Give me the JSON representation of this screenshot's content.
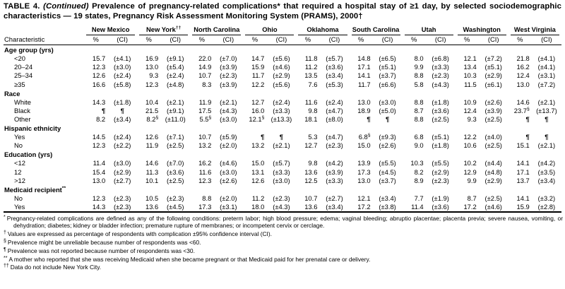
{
  "title": {
    "part1": "TABLE 4. ",
    "continued": "(Continued)",
    "rest": " Prevalence of pregnancy-related complications* that required a hospital stay of ≥1 day, by selected sociodemographic characteristics — 19 states, Pregnancy Risk Assessment Monitoring System (PRAMS), 2000†"
  },
  "table": {
    "stub_header": "Characteristic",
    "subheaders": {
      "pct": "%",
      "ci": "(CI)"
    },
    "states": [
      "New Mexico",
      "New York††",
      "North Carolina",
      "Ohio",
      "Oklahoma",
      "South Carolina",
      "Utah",
      "Washington",
      "West Virginia"
    ],
    "sections": [
      {
        "label": "Age group (yrs)",
        "rows": [
          {
            "label": "<20",
            "cells": [
              [
                "15.7",
                "(±4.1)"
              ],
              [
                "16.9",
                "(±9.1)"
              ],
              [
                "22.0",
                "(±7.0)"
              ],
              [
                "14.7",
                "(±5.6)"
              ],
              [
                "11.8",
                "(±5.7)"
              ],
              [
                "14.8",
                "(±6.5)"
              ],
              [
                "8.0",
                "(±6.8)"
              ],
              [
                "12.1",
                "(±7.2)"
              ],
              [
                "21.8",
                "(±4.1)"
              ]
            ]
          },
          {
            "label": "20–24",
            "cells": [
              [
                "12.3",
                "(±3.0)"
              ],
              [
                "13.0",
                "(±5.4)"
              ],
              [
                "14.9",
                "(±3.9)"
              ],
              [
                "15.9",
                "(±4.6)"
              ],
              [
                "11.2",
                "(±3.6)"
              ],
              [
                "17.1",
                "(±5.1)"
              ],
              [
                "9.9",
                "(±3.3)"
              ],
              [
                "13.4",
                "(±5.1)"
              ],
              [
                "16.2",
                "(±4.1)"
              ]
            ]
          },
          {
            "label": "25–34",
            "cells": [
              [
                "12.6",
                "(±2.4)"
              ],
              [
                "9.3",
                "(±2.4)"
              ],
              [
                "10.7",
                "(±2.3)"
              ],
              [
                "11.7",
                "(±2.9)"
              ],
              [
                "13.5",
                "(±3.4)"
              ],
              [
                "14.1",
                "(±3.7)"
              ],
              [
                "8.8",
                "(±2.3)"
              ],
              [
                "10.3",
                "(±2.9)"
              ],
              [
                "12.4",
                "(±3.1)"
              ]
            ]
          },
          {
            "label": "≥35",
            "cells": [
              [
                "16.6",
                "(±5.8)"
              ],
              [
                "12.3",
                "(±4.8)"
              ],
              [
                "8.3",
                "(±3.9)"
              ],
              [
                "12.2",
                "(±5.6)"
              ],
              [
                "7.6",
                "(±5.3)"
              ],
              [
                "11.7",
                "(±6.6)"
              ],
              [
                "5.8",
                "(±4.3)"
              ],
              [
                "11.5",
                "(±6.1)"
              ],
              [
                "13.0",
                "(±7.2)"
              ]
            ]
          }
        ]
      },
      {
        "label": "Race",
        "rows": [
          {
            "label": "White",
            "cells": [
              [
                "14.3",
                "(±1.8)"
              ],
              [
                "10.4",
                "(±2.1)"
              ],
              [
                "11.9",
                "(±2.1)"
              ],
              [
                "12.7",
                "(±2.4)"
              ],
              [
                "11.6",
                "(±2.4)"
              ],
              [
                "13.0",
                "(±3.0)"
              ],
              [
                "8.8",
                "(±1.8)"
              ],
              [
                "10.9",
                "(±2.6)"
              ],
              [
                "14.6",
                "(±2.1)"
              ]
            ]
          },
          {
            "label": "Black",
            "cells": [
              [
                "¶",
                "¶"
              ],
              [
                "21.5",
                "(±9.1)"
              ],
              [
                "17.5",
                "(±4.3)"
              ],
              [
                "16.0",
                "(±3.3)"
              ],
              [
                "9.8",
                "(±4.7)"
              ],
              [
                "18.9",
                "(±5.0)"
              ],
              [
                "8.7",
                "(±3.6)"
              ],
              [
                "12.4",
                "(±3.9)"
              ],
              [
                "23.7§",
                "(±13.7)"
              ]
            ]
          },
          {
            "label": "Other",
            "cells": [
              [
                "8.2",
                "(±3.4)"
              ],
              [
                "8.2§",
                "(±11.0)"
              ],
              [
                "5.5§",
                "(±3.0)"
              ],
              [
                "12.1§",
                "(±13.3)"
              ],
              [
                "18.1",
                "(±8.0)"
              ],
              [
                "¶",
                "¶"
              ],
              [
                "8.8",
                "(±2.5)"
              ],
              [
                "9.3",
                "(±2.5)"
              ],
              [
                "¶",
                "¶"
              ]
            ]
          }
        ]
      },
      {
        "label": "Hispanic ethnicity",
        "rows": [
          {
            "label": "Yes",
            "cells": [
              [
                "14.5",
                "(±2.4)"
              ],
              [
                "12.6",
                "(±7.1)"
              ],
              [
                "10.7",
                "(±5.9)"
              ],
              [
                "¶",
                "¶"
              ],
              [
                "5.3",
                "(±4.7)"
              ],
              [
                "6.8§",
                "(±9.3)"
              ],
              [
                "6.8",
                "(±5.1)"
              ],
              [
                "12.2",
                "(±4.0)"
              ],
              [
                "¶",
                "¶"
              ]
            ]
          },
          {
            "label": "No",
            "cells": [
              [
                "12.3",
                "(±2.2)"
              ],
              [
                "11.9",
                "(±2.5)"
              ],
              [
                "13.2",
                "(±2.0)"
              ],
              [
                "13.2",
                "(±2.1)"
              ],
              [
                "12.7",
                "(±2.3)"
              ],
              [
                "15.0",
                "(±2.6)"
              ],
              [
                "9.0",
                "(±1.8)"
              ],
              [
                "10.6",
                "(±2.5)"
              ],
              [
                "15.1",
                "(±2.1)"
              ]
            ]
          }
        ]
      },
      {
        "label": "Education (yrs)",
        "rows": [
          {
            "label": "<12",
            "cells": [
              [
                "11.4",
                "(±3.0)"
              ],
              [
                "14.6",
                "(±7.0)"
              ],
              [
                "16.2",
                "(±4.6)"
              ],
              [
                "15.0",
                "(±5.7)"
              ],
              [
                "9.8",
                "(±4.2)"
              ],
              [
                "13.9",
                "(±5.5)"
              ],
              [
                "10.3",
                "(±5.5)"
              ],
              [
                "10.2",
                "(±4.4)"
              ],
              [
                "14.1",
                "(±4.2)"
              ]
            ]
          },
          {
            "label": "12",
            "cells": [
              [
                "15.4",
                "(±2.9)"
              ],
              [
                "11.3",
                "(±3.6)"
              ],
              [
                "11.6",
                "(±3.0)"
              ],
              [
                "13.1",
                "(±3.3)"
              ],
              [
                "13.6",
                "(±3.9)"
              ],
              [
                "17.3",
                "(±4.5)"
              ],
              [
                "8.2",
                "(±2.9)"
              ],
              [
                "12.9",
                "(±4.8)"
              ],
              [
                "17.1",
                "(±3.5)"
              ]
            ]
          },
          {
            "label": ">12",
            "cells": [
              [
                "13.0",
                "(±2.7)"
              ],
              [
                "10.1",
                "(±2.5)"
              ],
              [
                "12.3",
                "(±2.6)"
              ],
              [
                "12.6",
                "(±3.0)"
              ],
              [
                "12.5",
                "(±3.3)"
              ],
              [
                "13.0",
                "(±3.7)"
              ],
              [
                "8.9",
                "(±2.3)"
              ],
              [
                "9.9",
                "(±2.9)"
              ],
              [
                "13.7",
                "(±3.4)"
              ]
            ]
          }
        ]
      },
      {
        "label": "Medicaid recipient**",
        "rows": [
          {
            "label": "No",
            "cells": [
              [
                "12.3",
                "(±2.3)"
              ],
              [
                "10.5",
                "(±2.3)"
              ],
              [
                "8.8",
                "(±2.0)"
              ],
              [
                "11.2",
                "(±2.3)"
              ],
              [
                "10.7",
                "(±2.7)"
              ],
              [
                "12.1",
                "(±3.4)"
              ],
              [
                "7.7",
                "(±1.9)"
              ],
              [
                "8.7",
                "(±2.5)"
              ],
              [
                "14.1",
                "(±3.2)"
              ]
            ]
          },
          {
            "label": "Yes",
            "cells": [
              [
                "14.3",
                "(±2.3)"
              ],
              [
                "13.6",
                "(±4.5)"
              ],
              [
                "17.3",
                "(±3.1)"
              ],
              [
                "18.0",
                "(±4.3)"
              ],
              [
                "13.6",
                "(±3.4)"
              ],
              [
                "17.2",
                "(±3.8)"
              ],
              [
                "11.4",
                "(±3.6)"
              ],
              [
                "17.2",
                "(±4.6)"
              ],
              [
                "15.9",
                "(±2.8)"
              ]
            ]
          }
        ]
      }
    ]
  },
  "footnotes": [
    {
      "marker": "*",
      "text": "Pregnancy-related complications are defined as any of the following conditions: preterm labor; high blood pressure; edema; vaginal bleeding; abruptio placentae; placenta previa; severe nausea, vomiting, or dehydration; diabetes; kidney or bladder infection; premature rupture of membranes; or incompetent cervix or cerclage."
    },
    {
      "marker": "†",
      "text": "Values are expressed as percentage of respondents with complication ±95% confidence interval (CI)."
    },
    {
      "marker": "§",
      "text": "Prevalence might be unreliable because number of respondents was <60."
    },
    {
      "marker": "¶",
      "text": "Prevalence was not reported because number of respondents was <30."
    },
    {
      "marker": "**",
      "text": "A mother who reported that she was receiving Medicaid when she became pregnant or that Medicaid paid for her prenatal care or delivery."
    },
    {
      "marker": "††",
      "text": "Data do not include New York City."
    }
  ]
}
